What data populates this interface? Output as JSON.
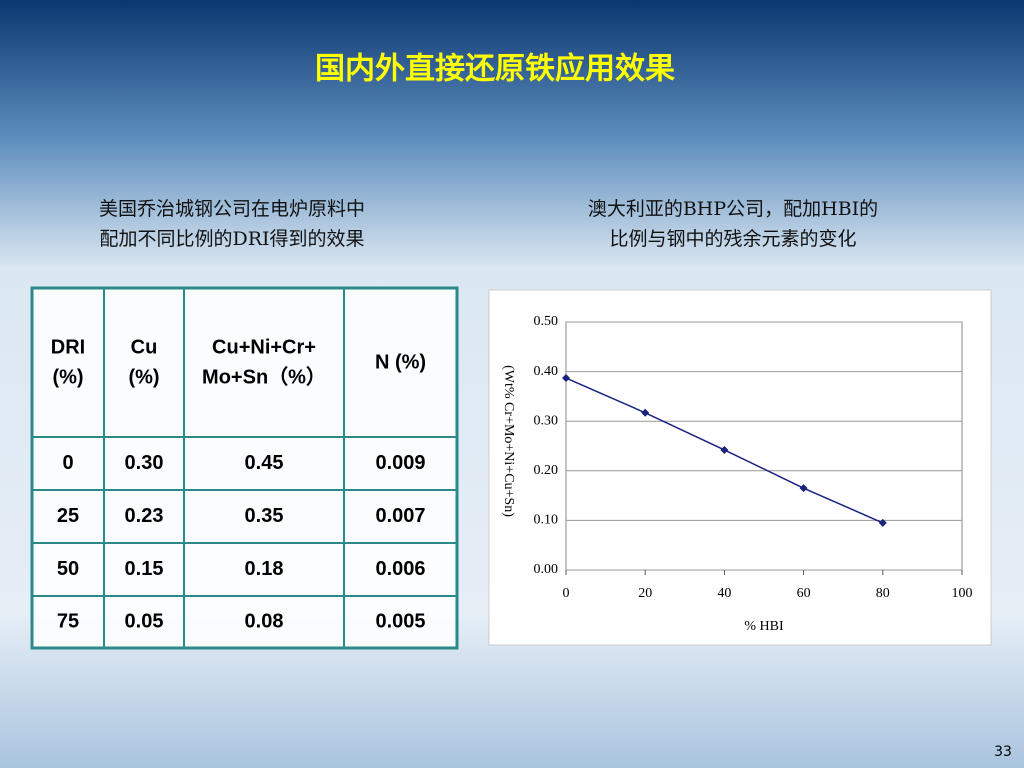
{
  "title": "国内外直接还原铁应用效果",
  "left_caption": [
    "美国乔治城钢公司在电炉原料中",
    "配加不同比例的DRI得到的效果"
  ],
  "right_caption": [
    "澳大利亚的BHP公司，配加HBI的",
    "比例与钢中的残余元素的变化"
  ],
  "table": {
    "header": [
      [
        "DRI",
        "(%)"
      ],
      [
        "Cu",
        "(%)"
      ],
      [
        "Cu+Ni+Cr+",
        "Mo+Sn（%）"
      ],
      [
        "N (%)"
      ]
    ],
    "rows": [
      [
        "0",
        "0.30",
        "0.45",
        "0.009"
      ],
      [
        "25",
        "0.23",
        "0.35",
        "0.007"
      ],
      [
        "50",
        "0.15",
        "0.18",
        "0.006"
      ],
      [
        "75",
        "0.05",
        "0.08",
        "0.005"
      ]
    ]
  },
  "chart_data": {
    "type": "line",
    "x_label": "% HBI",
    "y_label": "(Wt% Cr+Mo+Ni+Cu+Sn)",
    "x": [
      0,
      20,
      40,
      60,
      80
    ],
    "series": [
      {
        "color": "#1a237e",
        "values": [
          0.387,
          0.317,
          0.242,
          0.165,
          0.095
        ]
      }
    ],
    "xlim": [
      0,
      100
    ],
    "xticks": [
      0,
      20,
      40,
      60,
      80,
      100
    ],
    "ylim": [
      0,
      0.5
    ],
    "yticks": [
      {
        "value": 0,
        "label": "0.00"
      },
      {
        "value": 0.1,
        "label": "0.10"
      },
      {
        "value": 0.2,
        "label": "0.20"
      },
      {
        "value": 0.3,
        "label": "0.30"
      },
      {
        "value": 0.4,
        "label": "0.40"
      },
      {
        "value": 0.5,
        "label": "0.50"
      }
    ]
  },
  "page_number": "33"
}
